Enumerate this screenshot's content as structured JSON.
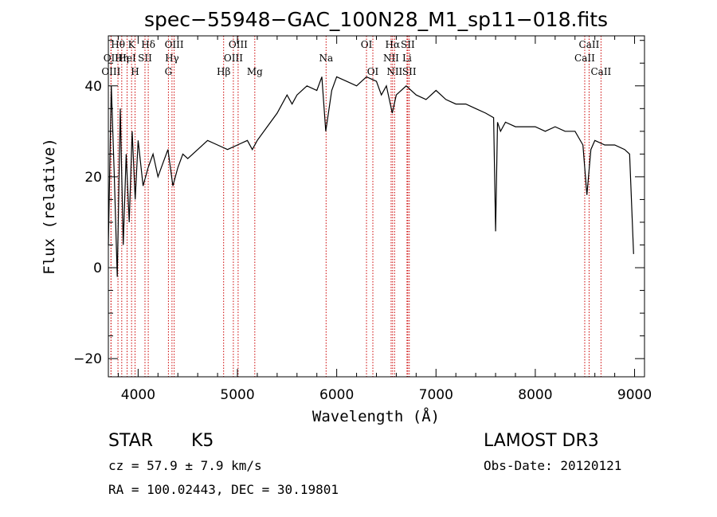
{
  "chart_data": {
    "type": "line",
    "title": "spec−55948−GAC_100N28_M1_sp11−018.fits",
    "xlabel": "Wavelength (Å)",
    "ylabel": "Flux (relative)",
    "xlim": [
      3700,
      9100
    ],
    "ylim": [
      -24,
      51
    ],
    "xticks": [
      4000,
      5000,
      6000,
      7000,
      8000,
      9000
    ],
    "xtick_labels": [
      "4000",
      "5000",
      "6000",
      "7000",
      "8000",
      "9000"
    ],
    "yticks": [
      -20,
      0,
      20,
      40
    ],
    "ytick_labels": [
      "−20",
      "0",
      "20",
      "40"
    ],
    "grid": false,
    "series": [
      {
        "x": [
          3700,
          3730,
          3760,
          3790,
          3820,
          3850,
          3880,
          3910,
          3940,
          3970,
          4000,
          4050,
          4100,
          4150,
          4200,
          4250,
          4300,
          4350,
          4400,
          4450,
          4500,
          4600,
          4700,
          4800,
          4900,
          5000,
          5100,
          5150,
          5200,
          5300,
          5400,
          5500,
          5550,
          5600,
          5700,
          5800,
          5850,
          5890,
          5950,
          6000,
          6100,
          6200,
          6300,
          6400,
          6450,
          6500,
          6560,
          6600,
          6700,
          6800,
          6900,
          7000,
          7100,
          7200,
          7300,
          7400,
          7500,
          7580,
          7600,
          7620,
          7650,
          7700,
          7800,
          7900,
          8000,
          8100,
          8200,
          8300,
          8400,
          8480,
          8520,
          8560,
          8600,
          8700,
          8800,
          8900,
          8950,
          8990
        ],
        "y": [
          5,
          40,
          20,
          -2,
          35,
          5,
          25,
          10,
          30,
          15,
          28,
          18,
          22,
          25,
          20,
          23,
          26,
          18,
          22,
          25,
          24,
          26,
          28,
          27,
          26,
          27,
          28,
          26,
          28,
          31,
          34,
          38,
          36,
          38,
          40,
          39,
          42,
          30,
          39,
          42,
          41,
          40,
          42,
          41,
          38,
          40,
          34,
          38,
          40,
          38,
          37,
          39,
          37,
          36,
          36,
          35,
          34,
          33,
          8,
          32,
          30,
          32,
          31,
          31,
          31,
          30,
          31,
          30,
          30,
          27,
          16,
          26,
          28,
          27,
          27,
          26,
          25,
          3
        ]
      }
    ],
    "lines": [
      {
        "name": "Hθ",
        "x": 3797,
        "row": 0
      },
      {
        "name": "OII",
        "x": 3727,
        "row": 1
      },
      {
        "name": "OIII",
        "x": 3727,
        "row": 2
      },
      {
        "name": "Hη",
        "x": 3835,
        "row": 1
      },
      {
        "name": "HeI",
        "x": 3889,
        "row": 1
      },
      {
        "name": "K",
        "x": 3934,
        "row": 0
      },
      {
        "name": "SII",
        "x": 4069,
        "row": 1
      },
      {
        "name": "H",
        "x": 3969,
        "row": 2
      },
      {
        "name": "Hδ",
        "x": 4102,
        "row": 0
      },
      {
        "name": "OIII",
        "x": 4363,
        "row": 0
      },
      {
        "name": "Hγ",
        "x": 4341,
        "row": 1
      },
      {
        "name": "G",
        "x": 4305,
        "row": 2
      },
      {
        "name": "Hβ",
        "x": 4861,
        "row": 2
      },
      {
        "name": "OIII",
        "x": 5007,
        "row": 0
      },
      {
        "name": "OIII",
        "x": 4959,
        "row": 1
      },
      {
        "name": "Mg",
        "x": 5175,
        "row": 2
      },
      {
        "name": "Na",
        "x": 5893,
        "row": 1
      },
      {
        "name": "OI",
        "x": 6300,
        "row": 0
      },
      {
        "name": "OI",
        "x": 6364,
        "row": 2
      },
      {
        "name": "Hα",
        "x": 6563,
        "row": 0
      },
      {
        "name": "SII",
        "x": 6716,
        "row": 0
      },
      {
        "name": "NII",
        "x": 6548,
        "row": 1
      },
      {
        "name": "Li",
        "x": 6708,
        "row": 1
      },
      {
        "name": "NII",
        "x": 6583,
        "row": 2
      },
      {
        "name": "SII",
        "x": 6731,
        "row": 2
      },
      {
        "name": "CaII",
        "x": 8542,
        "row": 0
      },
      {
        "name": "CaII",
        "x": 8498,
        "row": 1
      },
      {
        "name": "CaII",
        "x": 8662,
        "row": 2
      }
    ]
  },
  "info": {
    "class": "STAR",
    "subclass": "K5",
    "survey": "LAMOST DR3",
    "cz": "cz = 57.9 ± 7.9 km/s",
    "obs_date": "Obs-Date: 20120121",
    "radec": "RA = 100.02443, DEC =  30.19801"
  }
}
